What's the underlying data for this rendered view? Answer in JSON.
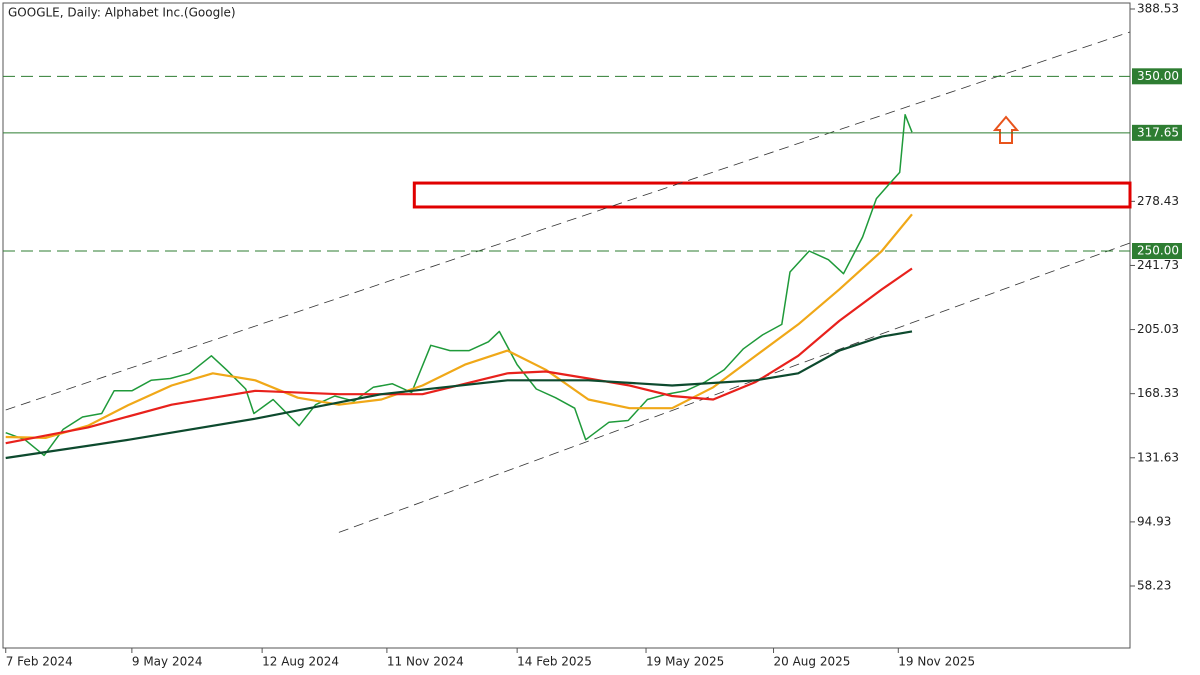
{
  "chart_data": {
    "type": "price-line",
    "title": "GOOGLE, Daily:  Alphabet Inc.(Google)",
    "xlim": [
      "2024-02-05",
      "2026-05-07"
    ],
    "xticks": [
      {
        "value": "2024-02-07",
        "label": "7 Feb 2024"
      },
      {
        "value": "2024-05-09",
        "label": "9 May 2024"
      },
      {
        "value": "2024-08-12",
        "label": "12 Aug 2024"
      },
      {
        "value": "2024-11-11",
        "label": "11 Nov 2024"
      },
      {
        "value": "2025-02-14",
        "label": "14 Feb 2025"
      },
      {
        "value": "2025-05-19",
        "label": "19 May 2025"
      },
      {
        "value": "2025-08-20",
        "label": "20 Aug 2025"
      },
      {
        "value": "2025-11-19",
        "label": "19 Nov 2025"
      }
    ],
    "ylim": [
      22.74,
      391.97
    ],
    "yticks": [
      388.53,
      278.43,
      241.73,
      205.03,
      168.33,
      131.63,
      94.93,
      58.23
    ],
    "grid": false,
    "series": [
      {
        "color": "#1f9a3a",
        "x": [
          "2024-02-07",
          "2024-02-21",
          "2024-03-06",
          "2024-03-20",
          "2024-04-03",
          "2024-04-17",
          "2024-04-26",
          "2024-05-09",
          "2024-05-23",
          "2024-06-06",
          "2024-06-20",
          "2024-07-06",
          "2024-07-17",
          "2024-07-31",
          "2024-08-06",
          "2024-08-20",
          "2024-09-08",
          "2024-09-20",
          "2024-10-04",
          "2024-10-18",
          "2024-11-01",
          "2024-11-15",
          "2024-11-29",
          "2024-12-13",
          "2024-12-27",
          "2025-01-10",
          "2025-01-24",
          "2025-02-01",
          "2025-02-14",
          "2025-02-28",
          "2025-03-14",
          "2025-03-28",
          "2025-04-05",
          "2025-04-22",
          "2025-05-06",
          "2025-05-20",
          "2025-06-03",
          "2025-06-17",
          "2025-07-01",
          "2025-07-15",
          "2025-07-29",
          "2025-08-12",
          "2025-08-26",
          "2025-09-01",
          "2025-09-15",
          "2025-09-29",
          "2025-10-10",
          "2025-10-24",
          "2025-11-03",
          "2025-11-12",
          "2025-11-20",
          "2025-11-24",
          "2025-11-29"
        ],
        "values": [
          146,
          142,
          133,
          148,
          155,
          157,
          170,
          170,
          176,
          177,
          180,
          190,
          182,
          171,
          157,
          165,
          150,
          162,
          167,
          164,
          172,
          174,
          169,
          196,
          193,
          193,
          198,
          204,
          185,
          171,
          166,
          160,
          142,
          152,
          153,
          165,
          168,
          170,
          175,
          182,
          194,
          202,
          208,
          238,
          250,
          245,
          237,
          258,
          280,
          288,
          295,
          328,
          318
        ]
      },
      {
        "color": "#f0a818",
        "x": [
          "2024-02-07",
          "2024-03-07",
          "2024-04-07",
          "2024-05-07",
          "2024-06-07",
          "2024-07-07",
          "2024-08-07",
          "2024-09-07",
          "2024-10-07",
          "2024-11-07",
          "2024-12-07",
          "2025-01-07",
          "2025-02-07",
          "2025-03-07",
          "2025-04-07",
          "2025-05-07",
          "2025-06-07",
          "2025-07-07",
          "2025-08-07",
          "2025-09-07",
          "2025-10-07",
          "2025-11-07",
          "2025-11-29"
        ],
        "values": [
          143.5,
          143,
          150,
          162,
          173,
          180,
          176,
          166,
          162,
          165,
          173,
          185,
          193,
          182,
          165,
          160,
          160,
          172,
          190,
          208,
          228,
          250,
          271
        ]
      },
      {
        "color": "#e8211c",
        "x": [
          "2024-02-07",
          "2024-04-07",
          "2024-06-07",
          "2024-08-07",
          "2024-10-07",
          "2024-12-07",
          "2025-02-07",
          "2025-03-07",
          "2025-04-07",
          "2025-05-07",
          "2025-06-07",
          "2025-07-07",
          "2025-08-07",
          "2025-09-07",
          "2025-10-07",
          "2025-11-07",
          "2025-11-29"
        ],
        "values": [
          140,
          149,
          162,
          170,
          168,
          168,
          180,
          181,
          177,
          173,
          167,
          165,
          175,
          190,
          210,
          228,
          240
        ]
      },
      {
        "color": "#0d4a2e",
        "x": [
          "2024-02-07",
          "2024-05-07",
          "2024-08-07",
          "2024-11-07",
          "2025-02-07",
          "2025-04-07",
          "2025-06-07",
          "2025-08-07",
          "2025-09-07",
          "2025-10-07",
          "2025-11-07",
          "2025-11-29"
        ],
        "values": [
          131.5,
          142,
          154,
          168,
          176,
          176,
          173,
          176,
          180,
          193,
          201,
          204
        ]
      }
    ],
    "levels": [
      {
        "value": 350,
        "label": "350.00",
        "style": "dashed",
        "color": "#2e7d32"
      },
      {
        "value": 317.65,
        "label": "317.65",
        "style": "solid",
        "color": "#2e7d32"
      },
      {
        "value": 250,
        "label": "250.00",
        "style": "dashed",
        "color": "#2e7d32"
      }
    ],
    "trendlines": [
      {
        "x": [
          "2024-02-07",
          "2026-05-07"
        ],
        "y": [
          159,
          375.4
        ]
      },
      {
        "x": [
          "2024-10-07",
          "2026-05-07"
        ],
        "y": [
          88.9,
          254.6
        ]
      }
    ],
    "zone": {
      "x": "2024-12-01",
      "ylim": [
        275.2,
        288.9
      ],
      "color": "#e00000"
    }
  }
}
